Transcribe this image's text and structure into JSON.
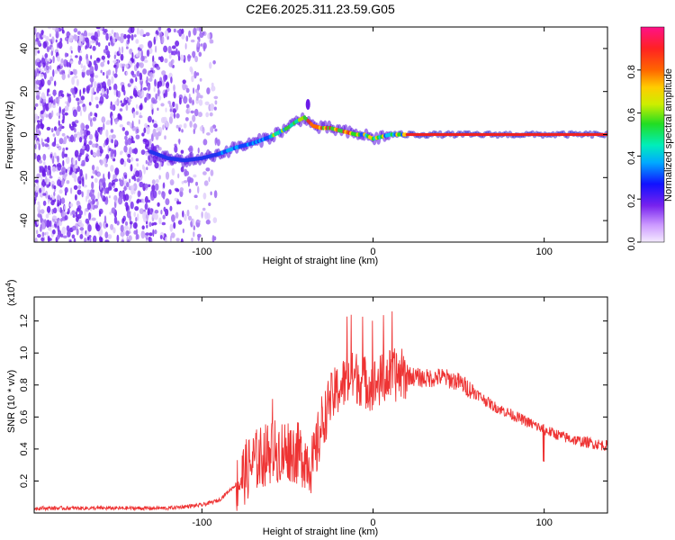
{
  "title": "C2E6.2025.311.23.59.G05",
  "chart_data": [
    {
      "type": "heatmap",
      "xlabel": "Height of straight line (km)",
      "ylabel": "Frequency (Hz)",
      "xlim": [
        -198,
        137
      ],
      "ylim": [
        -50,
        50
      ],
      "xticks": [
        -100,
        0,
        100
      ],
      "yticks": [
        -40,
        -20,
        0,
        20,
        40
      ],
      "noise_region_x": [
        -198,
        -90
      ],
      "trace": {
        "x": [
          -130,
          -120,
          -110,
          -100,
          -90,
          -80,
          -70,
          -60,
          -50,
          -45,
          -40,
          -35,
          -30,
          -25,
          -20,
          -15,
          -10,
          -5,
          0,
          5,
          10,
          20,
          40,
          60,
          80,
          100,
          120,
          137
        ],
        "y": [
          -8,
          -11,
          -12,
          -11,
          -9,
          -6,
          -4,
          -1,
          3,
          6,
          8,
          4,
          3,
          3,
          2,
          1,
          0,
          0,
          -2,
          -1,
          0,
          0,
          0,
          0,
          0,
          0,
          0,
          0
        ]
      },
      "colorbar": {
        "label": "Normalized spectral amplitude",
        "ticks": [
          "0.0",
          "0.2",
          "0.4",
          "0.6",
          "0.8"
        ],
        "range": [
          0,
          1
        ]
      }
    },
    {
      "type": "line",
      "xlabel": "Height of straight line (km)",
      "ylabel": "SNR (10 * v/v)",
      "scale_label": "(x10",
      "scale_exp": "4",
      "scale_close": ")",
      "xlim": [
        -198,
        137
      ],
      "ylim": [
        0,
        1.35
      ],
      "xticks": [
        -100,
        0,
        100
      ],
      "yticks": [
        "0.2",
        "0.4",
        "0.6",
        "0.8",
        "1.0",
        "1.2"
      ],
      "color": "#ee3333",
      "envelope": {
        "x": [
          -198,
          -160,
          -120,
          -100,
          -90,
          -80,
          -70,
          -60,
          -50,
          -40,
          -35,
          -30,
          -25,
          -20,
          -15,
          -10,
          -5,
          0,
          5,
          10,
          20,
          30,
          40,
          50,
          60,
          70,
          80,
          90,
          100,
          110,
          120,
          137
        ],
        "y": [
          0.03,
          0.03,
          0.03,
          0.05,
          0.08,
          0.18,
          0.32,
          0.38,
          0.4,
          0.35,
          0.3,
          0.55,
          0.7,
          0.78,
          0.83,
          0.85,
          0.82,
          0.8,
          0.83,
          0.86,
          0.86,
          0.84,
          0.85,
          0.82,
          0.75,
          0.67,
          0.62,
          0.57,
          0.52,
          0.48,
          0.45,
          0.42
        ]
      }
    }
  ]
}
